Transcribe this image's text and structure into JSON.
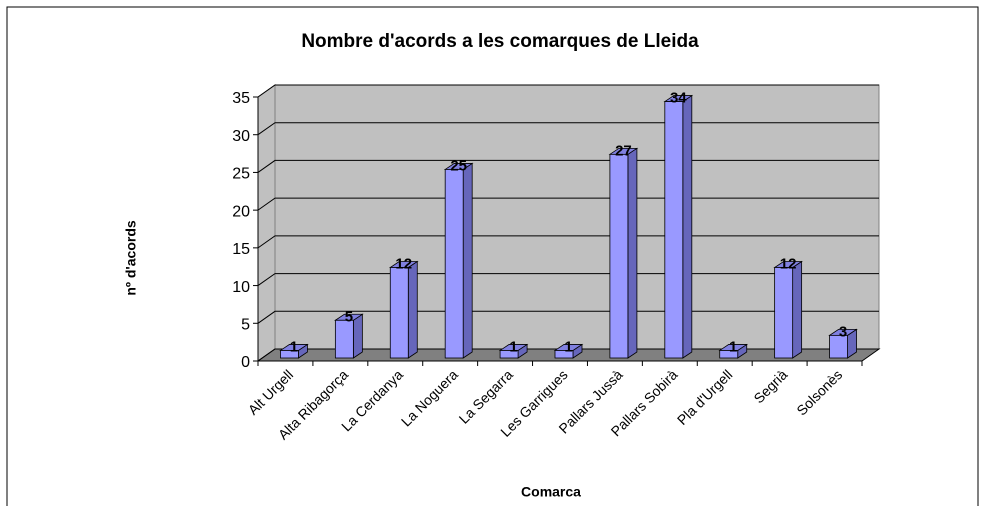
{
  "chart_data": {
    "type": "bar",
    "title": "Nombre d'acords a les comarques de Lleida",
    "xlabel": "Comarca",
    "ylabel": "nº d'acords",
    "categories": [
      "Alt Urgell",
      "Alta Ribagorça",
      "La Cerdanya",
      "La Noguera",
      "La Segarra",
      "Les Garrigues",
      "Pallars Jussà",
      "Pallars Sobirà",
      "Pla d'Urgell",
      "Segrià",
      "Solsonès"
    ],
    "values": [
      1,
      5,
      12,
      25,
      1,
      1,
      27,
      34,
      1,
      12,
      3
    ],
    "color": "#9999ff",
    "ylim": [
      0,
      35
    ],
    "yticks": [
      0,
      5,
      10,
      15,
      20,
      25,
      30,
      35
    ],
    "grid": true
  }
}
